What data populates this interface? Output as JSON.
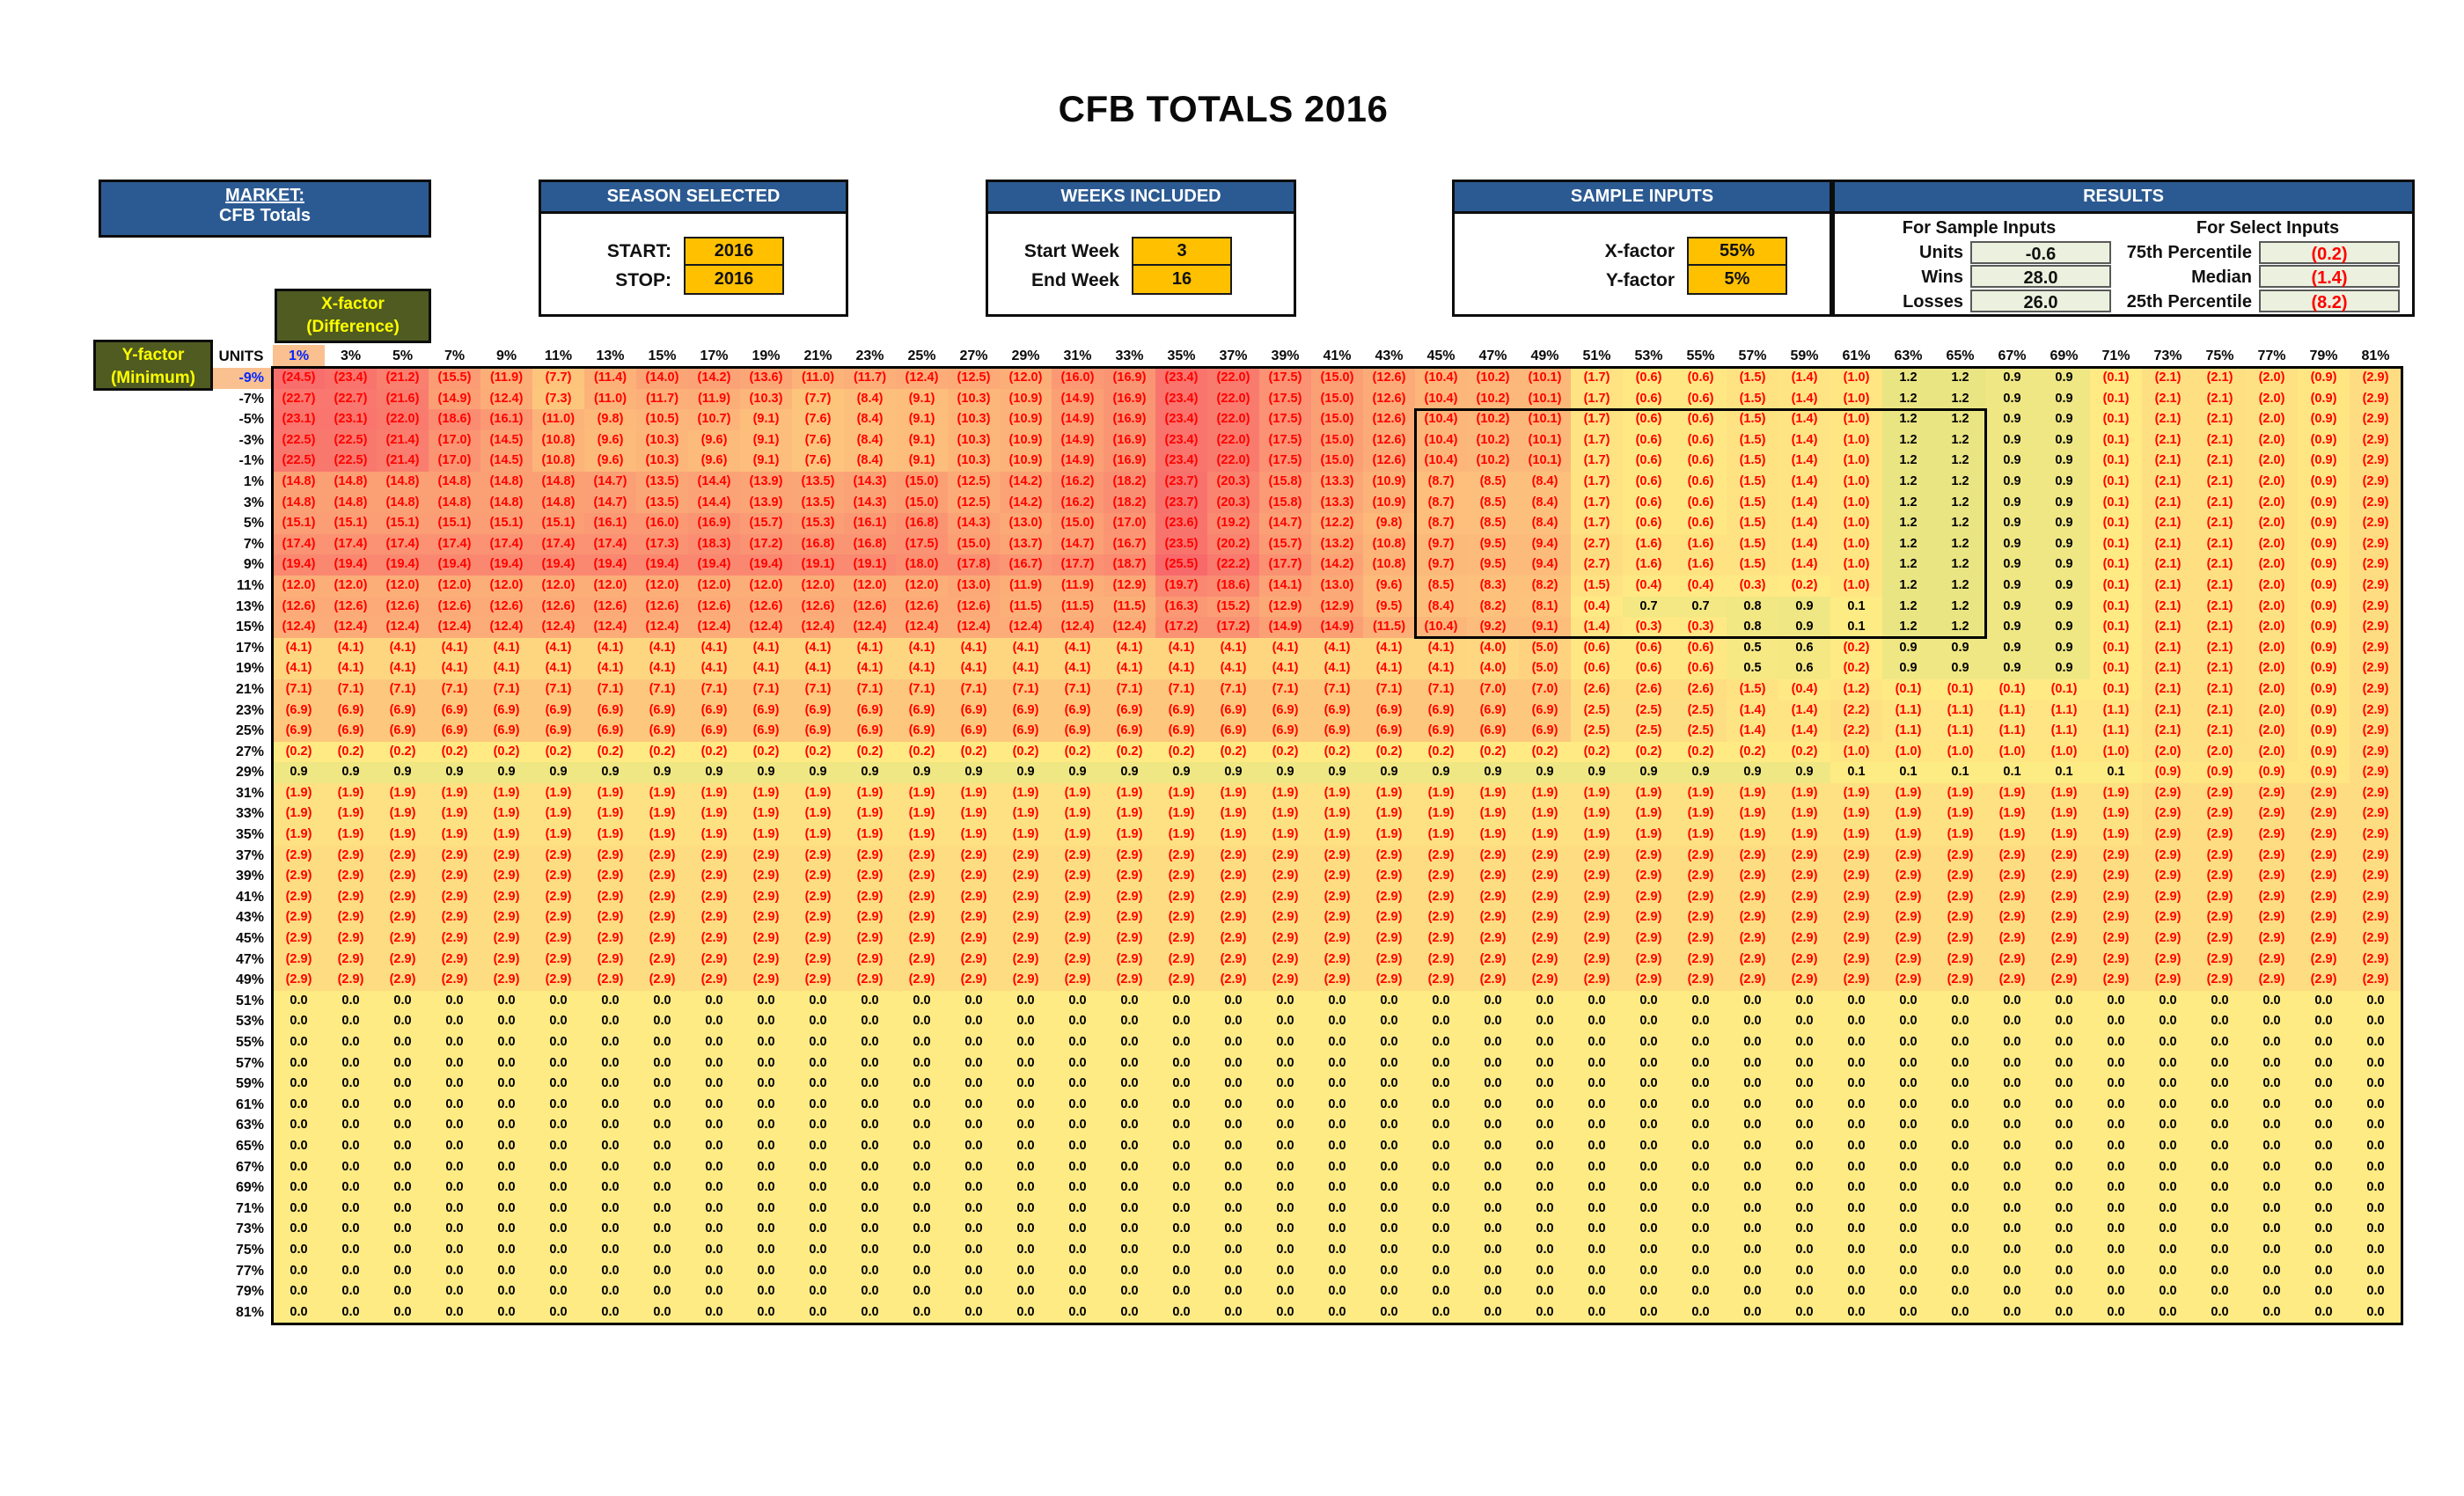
{
  "title": "CFB TOTALS 2016",
  "market": {
    "header": "MARKET:",
    "value": "CFB Totals"
  },
  "season": {
    "header": "SEASON SELECTED",
    "rows": [
      {
        "label": "START:",
        "value": "2016"
      },
      {
        "label": "STOP:",
        "value": "2016"
      }
    ]
  },
  "weeks": {
    "header": "WEEKS INCLUDED",
    "rows": [
      {
        "label": "Start Week",
        "value": "3"
      },
      {
        "label": "End Week",
        "value": "16"
      }
    ]
  },
  "sample_inputs": {
    "header": "SAMPLE INPUTS",
    "rows": [
      {
        "label": "X-factor",
        "value": "55%"
      },
      {
        "label": "Y-factor",
        "value": "5%"
      }
    ]
  },
  "results": {
    "header": "RESULTS",
    "sample": {
      "subheader": "For Sample Inputs",
      "rows": [
        {
          "label": "Units",
          "value": "-0.6"
        },
        {
          "label": "Wins",
          "value": "28.0"
        },
        {
          "label": "Losses",
          "value": "26.0"
        }
      ]
    },
    "select": {
      "subheader": "For Select Inputs",
      "rows": [
        {
          "label": "75th Percentile",
          "value": "(0.2)"
        },
        {
          "label": "Median",
          "value": "(1.4)"
        },
        {
          "label": "25th Percentile",
          "value": "(8.2)"
        }
      ]
    }
  },
  "matrix": {
    "x_axis_label": [
      "X-factor",
      "(Difference)"
    ],
    "y_axis_label": [
      "Y-factor",
      "(Minimum)"
    ],
    "units_label": "UNITS",
    "highlight_col": "1%",
    "highlight_row": "-9%",
    "col_headers": [
      "1%",
      "3%",
      "5%",
      "7%",
      "9%",
      "11%",
      "13%",
      "15%",
      "17%",
      "19%",
      "21%",
      "23%",
      "25%",
      "27%",
      "29%",
      "31%",
      "33%",
      "35%",
      "37%",
      "39%",
      "41%",
      "43%",
      "45%",
      "47%",
      "49%",
      "51%",
      "53%",
      "55%",
      "57%",
      "59%",
      "61%",
      "63%",
      "65%",
      "67%",
      "69%",
      "71%",
      "73%",
      "75%",
      "77%",
      "79%",
      "81%"
    ],
    "selection_box": {
      "first_row": "-5%",
      "last_row": "15%",
      "first_col": "45%",
      "last_col": "65%"
    },
    "colors": {
      "scale_min_red": "#F8696B",
      "scale_mid_yellow": "#FFEB84",
      "scale_max_green": "#63BE7B",
      "negative_text": "#FF0000",
      "positive_text": "#000000",
      "highlight_bg": "#FAC090",
      "highlight_text": "#0026FF"
    },
    "rows": [
      {
        "label": "-9%",
        "values": [
          -24.5,
          -23.4,
          -21.2,
          -15.5,
          -11.9,
          -7.7,
          -11.4,
          -14.0,
          -14.2,
          -13.6,
          -11.0,
          -11.7,
          -12.4,
          -12.5,
          -12.0,
          -16.0,
          -16.9,
          -23.4,
          -22.0,
          -17.5,
          -15.0,
          -12.6,
          -10.4,
          -10.2,
          -10.1,
          -1.7,
          -0.6,
          -0.6,
          -1.5,
          -1.4,
          -1.0,
          1.2,
          1.2,
          0.9,
          0.9,
          -0.1,
          -2.1,
          -2.1,
          -2.0,
          -0.9,
          -2.9
        ]
      },
      {
        "label": "-7%",
        "values": [
          -22.7,
          -22.7,
          -21.6,
          -14.9,
          -12.4,
          -7.3,
          -11.0,
          -11.7,
          -11.9,
          -10.3,
          -7.7,
          -8.4,
          -9.1,
          -10.3,
          -10.9,
          -14.9,
          -16.9,
          -23.4,
          -22.0,
          -17.5,
          -15.0,
          -12.6,
          -10.4,
          -10.2,
          -10.1,
          -1.7,
          -0.6,
          -0.6,
          -1.5,
          -1.4,
          -1.0,
          1.2,
          1.2,
          0.9,
          0.9,
          -0.1,
          -2.1,
          -2.1,
          -2.0,
          -0.9,
          -2.9
        ]
      },
      {
        "label": "-5%",
        "values": [
          -23.1,
          -23.1,
          -22.0,
          -18.6,
          -16.1,
          -11.0,
          -9.8,
          -10.5,
          -10.7,
          -9.1,
          -7.6,
          -8.4,
          -9.1,
          -10.3,
          -10.9,
          -14.9,
          -16.9,
          -23.4,
          -22.0,
          -17.5,
          -15.0,
          -12.6,
          -10.4,
          -10.2,
          -10.1,
          -1.7,
          -0.6,
          -0.6,
          -1.5,
          -1.4,
          -1.0,
          1.2,
          1.2,
          0.9,
          0.9,
          -0.1,
          -2.1,
          -2.1,
          -2.0,
          -0.9,
          -2.9
        ]
      },
      {
        "label": "-3%",
        "values": [
          -22.5,
          -22.5,
          -21.4,
          -17.0,
          -14.5,
          -10.8,
          -9.6,
          -10.3,
          -9.6,
          -9.1,
          -7.6,
          -8.4,
          -9.1,
          -10.3,
          -10.9,
          -14.9,
          -16.9,
          -23.4,
          -22.0,
          -17.5,
          -15.0,
          -12.6,
          -10.4,
          -10.2,
          -10.1,
          -1.7,
          -0.6,
          -0.6,
          -1.5,
          -1.4,
          -1.0,
          1.2,
          1.2,
          0.9,
          0.9,
          -0.1,
          -2.1,
          -2.1,
          -2.0,
          -0.9,
          -2.9
        ]
      },
      {
        "label": "-1%",
        "values": [
          -22.5,
          -22.5,
          -21.4,
          -17.0,
          -14.5,
          -10.8,
          -9.6,
          -10.3,
          -9.6,
          -9.1,
          -7.6,
          -8.4,
          -9.1,
          -10.3,
          -10.9,
          -14.9,
          -16.9,
          -23.4,
          -22.0,
          -17.5,
          -15.0,
          -12.6,
          -10.4,
          -10.2,
          -10.1,
          -1.7,
          -0.6,
          -0.6,
          -1.5,
          -1.4,
          -1.0,
          1.2,
          1.2,
          0.9,
          0.9,
          -0.1,
          -2.1,
          -2.1,
          -2.0,
          -0.9,
          -2.9
        ]
      },
      {
        "label": "1%",
        "values": [
          -14.8,
          -14.8,
          -14.8,
          -14.8,
          -14.8,
          -14.8,
          -14.7,
          -13.5,
          -14.4,
          -13.9,
          -13.5,
          -14.3,
          -15.0,
          -12.5,
          -14.2,
          -16.2,
          -18.2,
          -23.7,
          -20.3,
          -15.8,
          -13.3,
          -10.9,
          -8.7,
          -8.5,
          -8.4,
          -1.7,
          -0.6,
          -0.6,
          -1.5,
          -1.4,
          -1.0,
          1.2,
          1.2,
          0.9,
          0.9,
          -0.1,
          -2.1,
          -2.1,
          -2.0,
          -0.9,
          -2.9
        ]
      },
      {
        "label": "3%",
        "values": [
          -14.8,
          -14.8,
          -14.8,
          -14.8,
          -14.8,
          -14.8,
          -14.7,
          -13.5,
          -14.4,
          -13.9,
          -13.5,
          -14.3,
          -15.0,
          -12.5,
          -14.2,
          -16.2,
          -18.2,
          -23.7,
          -20.3,
          -15.8,
          -13.3,
          -10.9,
          -8.7,
          -8.5,
          -8.4,
          -1.7,
          -0.6,
          -0.6,
          -1.5,
          -1.4,
          -1.0,
          1.2,
          1.2,
          0.9,
          0.9,
          -0.1,
          -2.1,
          -2.1,
          -2.0,
          -0.9,
          -2.9
        ]
      },
      {
        "label": "5%",
        "values": [
          -15.1,
          -15.1,
          -15.1,
          -15.1,
          -15.1,
          -15.1,
          -16.1,
          -16.0,
          -16.9,
          -15.7,
          -15.3,
          -16.1,
          -16.8,
          -14.3,
          -13.0,
          -15.0,
          -17.0,
          -23.6,
          -19.2,
          -14.7,
          -12.2,
          -9.8,
          -8.7,
          -8.5,
          -8.4,
          -1.7,
          -0.6,
          -0.6,
          -1.5,
          -1.4,
          -1.0,
          1.2,
          1.2,
          0.9,
          0.9,
          -0.1,
          -2.1,
          -2.1,
          -2.0,
          -0.9,
          -2.9
        ]
      },
      {
        "label": "7%",
        "values": [
          -17.4,
          -17.4,
          -17.4,
          -17.4,
          -17.4,
          -17.4,
          -17.4,
          -17.3,
          -18.3,
          -17.2,
          -16.8,
          -16.8,
          -17.5,
          -15.0,
          -13.7,
          -14.7,
          -16.7,
          -23.5,
          -20.2,
          -15.7,
          -13.2,
          -10.8,
          -9.7,
          -9.5,
          -9.4,
          -2.7,
          -1.6,
          -1.6,
          -1.5,
          -1.4,
          -1.0,
          1.2,
          1.2,
          0.9,
          0.9,
          -0.1,
          -2.1,
          -2.1,
          -2.0,
          -0.9,
          -2.9
        ]
      },
      {
        "label": "9%",
        "values": [
          -19.4,
          -19.4,
          -19.4,
          -19.4,
          -19.4,
          -19.4,
          -19.4,
          -19.4,
          -19.4,
          -19.4,
          -19.1,
          -19.1,
          -18.0,
          -17.8,
          -16.7,
          -17.7,
          -18.7,
          -25.5,
          -22.2,
          -17.7,
          -14.2,
          -10.8,
          -9.7,
          -9.5,
          -9.4,
          -2.7,
          -1.6,
          -1.6,
          -1.5,
          -1.4,
          -1.0,
          1.2,
          1.2,
          0.9,
          0.9,
          -0.1,
          -2.1,
          -2.1,
          -2.0,
          -0.9,
          -2.9
        ]
      },
      {
        "label": "11%",
        "values": [
          -12.0,
          -12.0,
          -12.0,
          -12.0,
          -12.0,
          -12.0,
          -12.0,
          -12.0,
          -12.0,
          -12.0,
          -12.0,
          -12.0,
          -12.0,
          -13.0,
          -11.9,
          -11.9,
          -12.9,
          -19.7,
          -18.6,
          -14.1,
          -13.0,
          -9.6,
          -8.5,
          -8.3,
          -8.2,
          -1.5,
          -0.4,
          -0.4,
          -0.3,
          -0.2,
          -1.0,
          1.2,
          1.2,
          0.9,
          0.9,
          -0.1,
          -2.1,
          -2.1,
          -2.0,
          -0.9,
          -2.9
        ]
      },
      {
        "label": "13%",
        "values": [
          -12.6,
          -12.6,
          -12.6,
          -12.6,
          -12.6,
          -12.6,
          -12.6,
          -12.6,
          -12.6,
          -12.6,
          -12.6,
          -12.6,
          -12.6,
          -12.6,
          -11.5,
          -11.5,
          -11.5,
          -16.3,
          -15.2,
          -12.9,
          -12.9,
          -9.5,
          -8.4,
          -8.2,
          -8.1,
          -0.4,
          0.7,
          0.7,
          0.8,
          0.9,
          0.1,
          1.2,
          1.2,
          0.9,
          0.9,
          -0.1,
          -2.1,
          -2.1,
          -2.0,
          -0.9,
          -2.9
        ]
      },
      {
        "label": "15%",
        "values": [
          -12.4,
          -12.4,
          -12.4,
          -12.4,
          -12.4,
          -12.4,
          -12.4,
          -12.4,
          -12.4,
          -12.4,
          -12.4,
          -12.4,
          -12.4,
          -12.4,
          -12.4,
          -12.4,
          -12.4,
          -17.2,
          -17.2,
          -14.9,
          -14.9,
          -11.5,
          -10.4,
          -9.2,
          -9.1,
          -1.4,
          -0.3,
          -0.3,
          0.8,
          0.9,
          0.1,
          1.2,
          1.2,
          0.9,
          0.9,
          -0.1,
          -2.1,
          -2.1,
          -2.0,
          -0.9,
          -2.9
        ]
      },
      {
        "label": "17%",
        "rle": [
          [
            23,
            -4.1
          ],
          [
            1,
            -4.0
          ],
          [
            1,
            -5.0
          ],
          [
            3,
            -0.6
          ],
          [
            1,
            0.5
          ],
          [
            1,
            0.6
          ],
          [
            1,
            -0.2
          ],
          [
            4,
            0.9
          ],
          [
            1,
            -0.1
          ],
          [
            2,
            -2.1
          ],
          [
            1,
            -2.0
          ],
          [
            1,
            -0.9
          ],
          [
            1,
            -2.9
          ]
        ]
      },
      {
        "label": "19%",
        "rle": [
          [
            23,
            -4.1
          ],
          [
            1,
            -4.0
          ],
          [
            1,
            -5.0
          ],
          [
            3,
            -0.6
          ],
          [
            1,
            0.5
          ],
          [
            1,
            0.6
          ],
          [
            1,
            -0.2
          ],
          [
            4,
            0.9
          ],
          [
            1,
            -0.1
          ],
          [
            2,
            -2.1
          ],
          [
            1,
            -2.0
          ],
          [
            1,
            -0.9
          ],
          [
            1,
            -2.9
          ]
        ]
      },
      {
        "label": "21%",
        "rle": [
          [
            23,
            -7.1
          ],
          [
            2,
            -7.0
          ],
          [
            3,
            -2.6
          ],
          [
            1,
            -1.5
          ],
          [
            1,
            -0.4
          ],
          [
            1,
            -1.2
          ],
          [
            5,
            -0.1
          ],
          [
            2,
            -2.1
          ],
          [
            1,
            -2.0
          ],
          [
            1,
            -0.9
          ],
          [
            1,
            -2.9
          ]
        ]
      },
      {
        "label": "23%",
        "rle": [
          [
            25,
            -6.9
          ],
          [
            3,
            -2.5
          ],
          [
            2,
            -1.4
          ],
          [
            1,
            -2.2
          ],
          [
            5,
            -1.1
          ],
          [
            2,
            -2.1
          ],
          [
            1,
            -2.0
          ],
          [
            1,
            -0.9
          ],
          [
            1,
            -2.9
          ]
        ]
      },
      {
        "label": "25%",
        "rle": [
          [
            25,
            -6.9
          ],
          [
            3,
            -2.5
          ],
          [
            2,
            -1.4
          ],
          [
            1,
            -2.2
          ],
          [
            5,
            -1.1
          ],
          [
            2,
            -2.1
          ],
          [
            1,
            -2.0
          ],
          [
            1,
            -0.9
          ],
          [
            1,
            -2.9
          ]
        ]
      },
      {
        "label": "27%",
        "rle": [
          [
            30,
            -0.2
          ],
          [
            6,
            -1.0
          ],
          [
            3,
            -2.0
          ],
          [
            1,
            -0.9
          ],
          [
            1,
            -2.9
          ]
        ]
      },
      {
        "label": "29%",
        "rle": [
          [
            30,
            0.9
          ],
          [
            6,
            0.1
          ],
          [
            4,
            -0.9
          ],
          [
            1,
            -2.9
          ]
        ]
      },
      {
        "label": "31%",
        "rle": [
          [
            36,
            -1.9
          ],
          [
            5,
            -2.9
          ]
        ]
      },
      {
        "label": "33%",
        "rle": [
          [
            36,
            -1.9
          ],
          [
            5,
            -2.9
          ]
        ]
      },
      {
        "label": "35%",
        "rle": [
          [
            36,
            -1.9
          ],
          [
            5,
            -2.9
          ]
        ]
      },
      {
        "label": "37%",
        "rle": [
          [
            41,
            -2.9
          ]
        ]
      },
      {
        "label": "39%",
        "rle": [
          [
            41,
            -2.9
          ]
        ]
      },
      {
        "label": "41%",
        "rle": [
          [
            41,
            -2.9
          ]
        ]
      },
      {
        "label": "43%",
        "rle": [
          [
            41,
            -2.9
          ]
        ]
      },
      {
        "label": "45%",
        "rle": [
          [
            41,
            -2.9
          ]
        ]
      },
      {
        "label": "47%",
        "rle": [
          [
            41,
            -2.9
          ]
        ]
      },
      {
        "label": "49%",
        "rle": [
          [
            41,
            -2.9
          ]
        ]
      },
      {
        "label": "51%",
        "rle": [
          [
            41,
            0.0
          ]
        ]
      },
      {
        "label": "53%",
        "rle": [
          [
            41,
            0.0
          ]
        ]
      },
      {
        "label": "55%",
        "rle": [
          [
            41,
            0.0
          ]
        ]
      },
      {
        "label": "57%",
        "rle": [
          [
            41,
            0.0
          ]
        ]
      },
      {
        "label": "59%",
        "rle": [
          [
            41,
            0.0
          ]
        ]
      },
      {
        "label": "61%",
        "rle": [
          [
            41,
            0.0
          ]
        ]
      },
      {
        "label": "63%",
        "rle": [
          [
            41,
            0.0
          ]
        ]
      },
      {
        "label": "65%",
        "rle": [
          [
            41,
            0.0
          ]
        ]
      },
      {
        "label": "67%",
        "rle": [
          [
            41,
            0.0
          ]
        ]
      },
      {
        "label": "69%",
        "rle": [
          [
            41,
            0.0
          ]
        ]
      },
      {
        "label": "71%",
        "rle": [
          [
            41,
            0.0
          ]
        ]
      },
      {
        "label": "73%",
        "rle": [
          [
            41,
            0.0
          ]
        ]
      },
      {
        "label": "75%",
        "rle": [
          [
            41,
            0.0
          ]
        ]
      },
      {
        "label": "77%",
        "rle": [
          [
            41,
            0.0
          ]
        ]
      },
      {
        "label": "79%",
        "rle": [
          [
            41,
            0.0
          ]
        ]
      },
      {
        "label": "81%",
        "rle": [
          [
            41,
            0.0
          ]
        ]
      }
    ]
  }
}
